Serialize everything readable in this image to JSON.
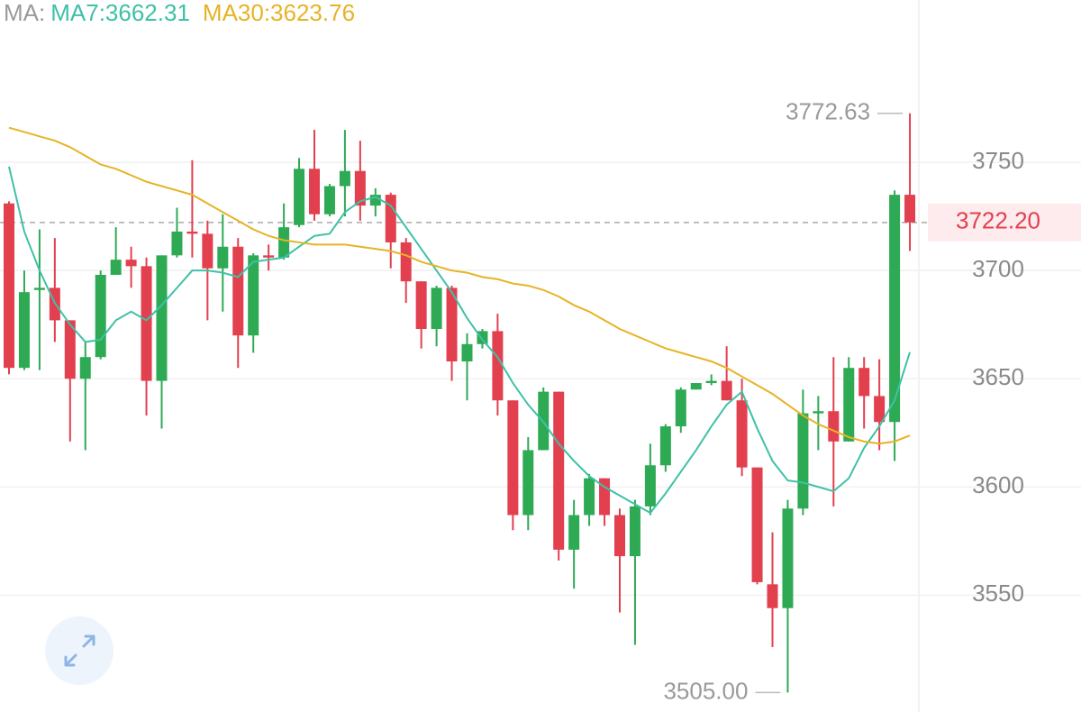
{
  "chart_data": {
    "type": "candlestick",
    "legend_prefix": "MA:",
    "up_color": "#2eaa55",
    "down_color": "#e2404f",
    "grid": true,
    "ylim": [
      3496,
      3825
    ],
    "yticks": [
      3550,
      3600,
      3650,
      3700,
      3750
    ],
    "open": [
      3731,
      3655,
      3691,
      3692,
      3677,
      3650,
      3660,
      3698,
      3705,
      3702,
      3649,
      3707,
      3718,
      3717,
      3701,
      3711,
      3670,
      3707,
      3706,
      3721,
      3747,
      3726,
      3739,
      3746,
      3730,
      3735,
      3713,
      3695,
      3673,
      3692,
      3658,
      3666,
      3672,
      3640,
      3587,
      3617,
      3644,
      3571,
      3587,
      3604,
      3587,
      3568,
      3591,
      3610,
      3628,
      3645,
      3648,
      3649,
      3640,
      3609,
      3555,
      3544,
      3590,
      3634,
      3635,
      3621,
      3655,
      3642,
      3630,
      3735
    ],
    "high": [
      3732,
      3700,
      3719,
      3715,
      3677,
      3667,
      3700,
      3720,
      3711,
      3706,
      3707,
      3729,
      3751,
      3723,
      3726,
      3715,
      3708,
      3712,
      3731,
      3752,
      3765,
      3740,
      3765,
      3760,
      3738,
      3736,
      3715,
      3695,
      3693,
      3693,
      3671,
      3673,
      3680,
      3640,
      3623,
      3646,
      3644,
      3594,
      3606,
      3604,
      3590,
      3594,
      3620,
      3629,
      3646,
      3648,
      3652,
      3665,
      3650,
      3609,
      3579,
      3594,
      3645,
      3642,
      3660,
      3660,
      3660,
      3659,
      3737,
      3772.63
    ],
    "low": [
      3652,
      3654,
      3654,
      3667,
      3621,
      3617,
      3659,
      3698,
      3692,
      3633,
      3627,
      3706,
      3706,
      3677,
      3681,
      3655,
      3662,
      3700,
      3705,
      3720,
      3723,
      3725,
      3725,
      3723,
      3725,
      3701,
      3685,
      3664,
      3665,
      3649,
      3640,
      3664,
      3633,
      3580,
      3580,
      3617,
      3566,
      3553,
      3582,
      3582,
      3542,
      3527,
      3587,
      3607,
      3625,
      3645,
      3647,
      3640,
      3605,
      3555,
      3526,
      3505,
      3587,
      3617,
      3591,
      3621,
      3627,
      3617,
      3612,
      3709
    ],
    "close": [
      3655,
      3690,
      3692,
      3677,
      3650,
      3660,
      3698,
      3705,
      3702,
      3649,
      3707,
      3718,
      3717,
      3701,
      3711,
      3670,
      3707,
      3706,
      3720,
      3747,
      3726,
      3739,
      3746,
      3730,
      3735,
      3713,
      3695,
      3673,
      3692,
      3658,
      3666,
      3672,
      3640,
      3587,
      3617,
      3644,
      3571,
      3587,
      3604,
      3587,
      3568,
      3591,
      3610,
      3628,
      3645,
      3648,
      3649,
      3640,
      3609,
      3556,
      3544,
      3590,
      3634,
      3635,
      3621,
      3655,
      3642,
      3630,
      3735,
      3722.2
    ],
    "series": [
      {
        "name": "MA7:3662.31",
        "color": "#3ec1a7",
        "values": [
          3748,
          3718,
          3700,
          3685,
          3675,
          3667,
          3668,
          3677,
          3681,
          3677,
          3684,
          3692,
          3700,
          3700,
          3699,
          3697,
          3704,
          3705,
          3706,
          3711,
          3716,
          3717,
          3727,
          3732,
          3734,
          3730,
          3720,
          3710,
          3700,
          3690,
          3678,
          3668,
          3660,
          3648,
          3638,
          3630,
          3620,
          3612,
          3605,
          3600,
          3596,
          3592,
          3588,
          3597,
          3607,
          3617,
          3628,
          3638,
          3644,
          3627,
          3612,
          3603,
          3602,
          3600,
          3598,
          3604,
          3618,
          3628,
          3640,
          3662.31
        ]
      },
      {
        "name": "MA30:3623.76",
        "color": "#e7b325",
        "values": [
          3766,
          3764,
          3762,
          3760,
          3757,
          3753,
          3749,
          3747,
          3744,
          3741,
          3739,
          3737,
          3735,
          3731,
          3727,
          3723,
          3719,
          3716,
          3714,
          3713,
          3712,
          3712,
          3712,
          3711,
          3710,
          3709,
          3707,
          3704,
          3702,
          3700,
          3699,
          3697,
          3696,
          3694,
          3693,
          3691,
          3688,
          3684,
          3681,
          3677,
          3673,
          3670,
          3667,
          3664,
          3662,
          3660,
          3658,
          3655,
          3651,
          3647,
          3643,
          3638,
          3633,
          3629,
          3626,
          3623,
          3621,
          3620,
          3621,
          3623.76
        ]
      }
    ],
    "max_label": {
      "value": 3772.63,
      "label": "3772.63"
    },
    "min_label": {
      "value": 3505,
      "label": "3505.00"
    },
    "last_label": {
      "value": 3722.2,
      "label": "3722.20"
    }
  }
}
